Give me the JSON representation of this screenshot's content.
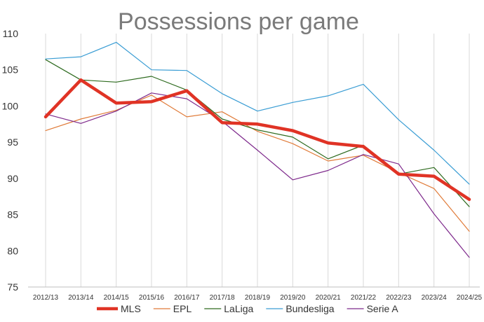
{
  "chart_data": {
    "type": "line",
    "title": "Possessions per game",
    "xlabel": "",
    "ylabel": "",
    "ylim": [
      75,
      110
    ],
    "yticks": [
      75,
      80,
      85,
      90,
      95,
      100,
      105,
      110
    ],
    "grid": "vertical",
    "legend_position": "bottom",
    "categories": [
      "2012/13",
      "2013/14",
      "2014/15",
      "2015/16",
      "2016/17",
      "2017/18",
      "2018/19",
      "2019/20",
      "2020/21",
      "2021/22",
      "2022/23",
      "2023/24",
      "2024/25"
    ],
    "series": [
      {
        "name": "EPL",
        "color": "#e07b39",
        "width": 1.2,
        "values": [
          96.6,
          98.2,
          99.4,
          101.5,
          98.5,
          99.2,
          96.5,
          94.8,
          92.4,
          93.2,
          90.8,
          88.6,
          82.7
        ]
      },
      {
        "name": "LaLiga",
        "color": "#2e6b1f",
        "width": 1.2,
        "values": [
          106.4,
          103.6,
          103.3,
          104.1,
          102.2,
          98.2,
          96.7,
          95.7,
          92.7,
          94.6,
          90.6,
          91.5,
          86.1
        ]
      },
      {
        "name": "Bundesliga",
        "color": "#3a9dd4",
        "width": 1.2,
        "values": [
          106.5,
          106.8,
          108.8,
          105.0,
          104.9,
          101.7,
          99.3,
          100.5,
          101.4,
          103.0,
          98.1,
          93.9,
          89.2
        ]
      },
      {
        "name": "Serie A",
        "color": "#7e2a8c",
        "width": 1.2,
        "values": [
          98.9,
          97.6,
          99.3,
          101.8,
          101.0,
          97.9,
          93.9,
          89.8,
          91.1,
          93.3,
          92.0,
          85.1,
          79.1
        ]
      },
      {
        "name": "MLS",
        "color": "#e03325",
        "width": 4.5,
        "values": [
          98.5,
          103.6,
          100.4,
          100.6,
          102.1,
          97.7,
          97.5,
          96.6,
          94.9,
          94.4,
          90.6,
          90.3,
          87.1
        ]
      }
    ],
    "legend_order": [
      "MLS",
      "EPL",
      "LaLiga",
      "Bundesliga",
      "Serie A"
    ]
  }
}
